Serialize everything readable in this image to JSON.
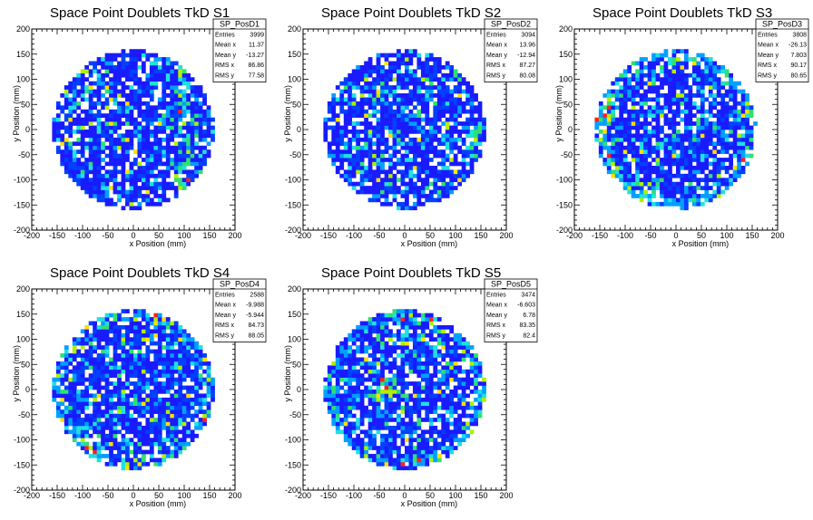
{
  "canvas_background": "#ffffff",
  "chart_data": [
    {
      "type": "heatmap",
      "title": "Space Point Doublets TkD S1",
      "xlabel": "x Position (mm)",
      "ylabel": "y Position (mm)",
      "xlim": [
        -200,
        200
      ],
      "ylim": [
        -200,
        200
      ],
      "xticks": [
        "-200",
        "-150",
        "-100",
        "-50",
        "0",
        "50",
        "100",
        "150",
        "200"
      ],
      "yticks": [
        "-200",
        "-150",
        "-100",
        "-50",
        "0",
        "50",
        "100",
        "150",
        "200"
      ],
      "bin_size_mm": 8,
      "region": "disk radius ~160 mm",
      "stats": {
        "name": "SP_PosD1",
        "rows": [
          [
            "Entries",
            "3999"
          ],
          [
            "Mean x",
            "11.37"
          ],
          [
            "Mean y",
            "-13.27"
          ],
          [
            "RMS x",
            "86.86"
          ],
          [
            "RMS y",
            "77.58"
          ]
        ]
      },
      "hotspots": [
        {
          "x": 100,
          "y": 0,
          "note": "vertical hot stripe near x=100"
        }
      ]
    },
    {
      "type": "heatmap",
      "title": "Space Point Doublets TkD S2",
      "xlabel": "x Position (mm)",
      "ylabel": "y Position (mm)",
      "xlim": [
        -200,
        200
      ],
      "ylim": [
        -200,
        200
      ],
      "xticks": [
        "-200",
        "-150",
        "-100",
        "-50",
        "0",
        "50",
        "100",
        "150",
        "200"
      ],
      "yticks": [
        "-200",
        "-150",
        "-100",
        "-50",
        "0",
        "50",
        "100",
        "150",
        "200"
      ],
      "bin_size_mm": 8,
      "region": "disk radius ~160 mm",
      "stats": {
        "name": "SP_PosD2",
        "rows": [
          [
            "Entries",
            "3094"
          ],
          [
            "Mean x",
            "13.96"
          ],
          [
            "Mean y",
            "-12.94"
          ],
          [
            "RMS x",
            "87.27"
          ],
          [
            "RMS y",
            "80.08"
          ]
        ]
      },
      "hotspots": [
        {
          "x": 155,
          "y": -10,
          "note": "right edge hot bins"
        }
      ]
    },
    {
      "type": "heatmap",
      "title": "Space Point Doublets TkD S3",
      "xlabel": "x Position (mm)",
      "ylabel": "y Position (mm)",
      "xlim": [
        -200,
        200
      ],
      "ylim": [
        -200,
        200
      ],
      "xticks": [
        "-200",
        "-150",
        "-100",
        "-50",
        "0",
        "50",
        "100",
        "150",
        "200"
      ],
      "yticks": [
        "-200",
        "-150",
        "-100",
        "-50",
        "0",
        "50",
        "100",
        "150",
        "200"
      ],
      "bin_size_mm": 8,
      "region": "disk radius ~160 mm",
      "stats": {
        "name": "SP_PosD3",
        "rows": [
          [
            "Entries",
            "3808"
          ],
          [
            "Mean x",
            "-26.13"
          ],
          [
            "Mean y",
            "7.803"
          ],
          [
            "RMS x",
            "90.17"
          ],
          [
            "RMS y",
            "80.65"
          ]
        ]
      },
      "hotspots": [
        {
          "x": -140,
          "y": 40,
          "note": "left edge hot bins"
        }
      ]
    },
    {
      "type": "heatmap",
      "title": "Space Point Doublets TkD S4",
      "xlabel": "x Position (mm)",
      "ylabel": "y Position (mm)",
      "xlim": [
        -200,
        200
      ],
      "ylim": [
        -200,
        200
      ],
      "xticks": [
        "-200",
        "-150",
        "-100",
        "-50",
        "0",
        "50",
        "100",
        "150",
        "200"
      ],
      "yticks": [
        "-200",
        "-150",
        "-100",
        "-50",
        "0",
        "50",
        "100",
        "150",
        "200"
      ],
      "bin_size_mm": 8,
      "region": "disk radius ~160 mm",
      "stats": {
        "name": "SP_PosD4",
        "rows": [
          [
            "Entries",
            "2588"
          ],
          [
            "Mean x",
            "-9.988"
          ],
          [
            "Mean y",
            "-5.944"
          ],
          [
            "RMS x",
            "84.73"
          ],
          [
            "RMS y",
            "88.05"
          ]
        ]
      },
      "hotspots": [
        {
          "x": -100,
          "y": -120,
          "note": "lower-left hot bins"
        }
      ]
    },
    {
      "type": "heatmap",
      "title": "Space Point Doublets TkD S5",
      "xlabel": "x Position (mm)",
      "ylabel": "y Position (mm)",
      "xlim": [
        -200,
        200
      ],
      "ylim": [
        -200,
        200
      ],
      "xticks": [
        "-200",
        "-150",
        "-100",
        "-50",
        "0",
        "50",
        "100",
        "150",
        "200"
      ],
      "yticks": [
        "-200",
        "-150",
        "-100",
        "-50",
        "0",
        "50",
        "100",
        "150",
        "200"
      ],
      "bin_size_mm": 8,
      "region": "disk radius ~160 mm",
      "stats": {
        "name": "SP_PosD5",
        "rows": [
          [
            "Entries",
            "3474"
          ],
          [
            "Mean x",
            "-6.603"
          ],
          [
            "Mean y",
            "6.78"
          ],
          [
            "RMS x",
            "83.35"
          ],
          [
            "RMS y",
            "82.4"
          ]
        ]
      },
      "hotspots": [
        {
          "x": -40,
          "y": 0,
          "note": "scattered hot bins"
        }
      ]
    }
  ],
  "palette": [
    "#1a1aff",
    "#0040ff",
    "#00a0ff",
    "#20e0e0",
    "#30e070",
    "#b0f000",
    "#ffe000",
    "#ff2020"
  ]
}
